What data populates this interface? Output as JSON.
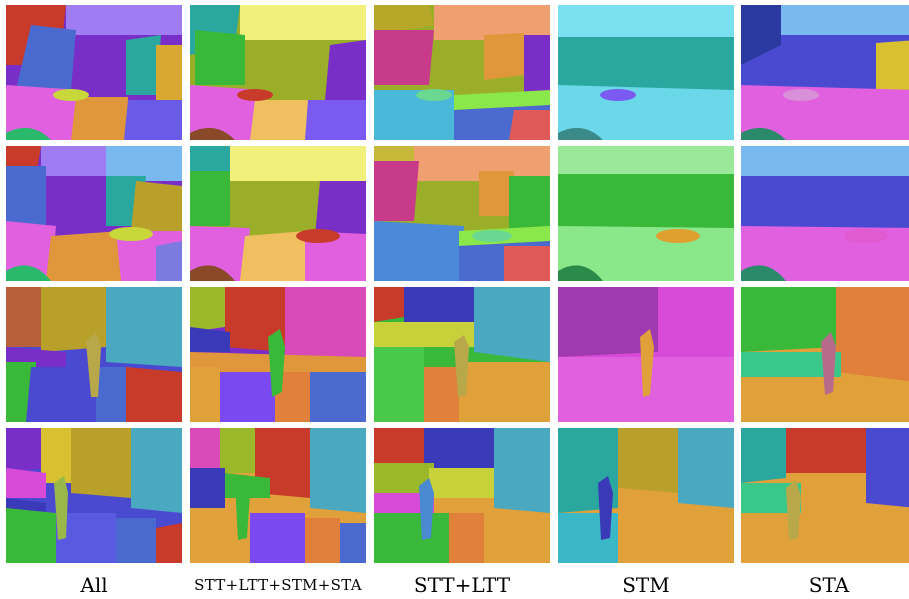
{
  "figure": {
    "columns": [
      {
        "caption": "All"
      },
      {
        "caption": "STT+LTT+STM+STA"
      },
      {
        "caption": "STT+LTT"
      },
      {
        "caption": "STM"
      },
      {
        "caption": "STA"
      }
    ],
    "rows": 4
  },
  "palette": {
    "purple": "#7a2ec8",
    "violet": "#a07cf2",
    "magenta": "#e060e0",
    "pink": "#f07aa8",
    "orange": "#e0963a",
    "red": "#c83a2a",
    "yellow": "#d8d430",
    "olive": "#9aae2a",
    "green": "#3ab83a",
    "teal": "#2aa8a0",
    "cyan": "#6ad8e8",
    "blue": "#4a4ad0",
    "skyblue": "#7ab8f0",
    "brown": "#b8803a"
  }
}
